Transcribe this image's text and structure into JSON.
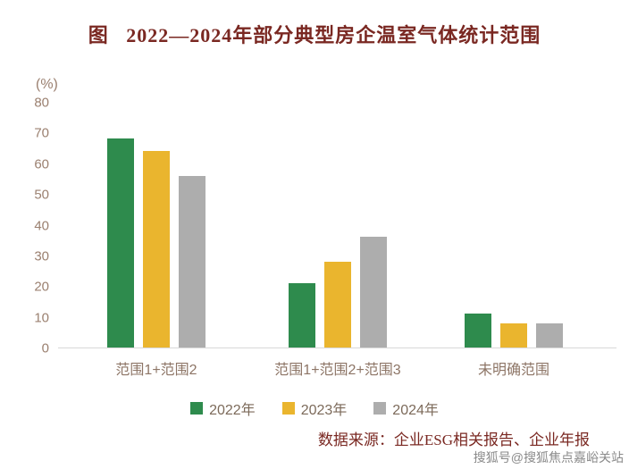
{
  "page": {
    "title": "图   2022—2024年部分典型房企温室气体统计范围",
    "unit_label": "(%)",
    "source": "数据来源：企业ESG相关报告、企业年报",
    "watermark": "搜狐号@搜狐焦点嘉峪关站"
  },
  "chart_data": {
    "type": "bar",
    "title": "2022—2024年部分典型房企温室气体统计范围",
    "xlabel": "",
    "ylabel": "(%)",
    "categories": [
      "范围1+范围2",
      "范围1+范围2+范围3",
      "未明确范围"
    ],
    "series": [
      {
        "name": "2022年",
        "color": "#2e8b4d",
        "values": [
          68,
          21,
          11
        ]
      },
      {
        "name": "2023年",
        "color": "#eab52e",
        "values": [
          64,
          28,
          8
        ]
      },
      {
        "name": "2024年",
        "color": "#adadad",
        "values": [
          56,
          36,
          8
        ]
      }
    ],
    "ylim": [
      0,
      80
    ],
    "ytick_step": 10,
    "grid": false,
    "legend_position": "bottom",
    "source": "数据来源：企业ESG相关报告、企业年报"
  }
}
